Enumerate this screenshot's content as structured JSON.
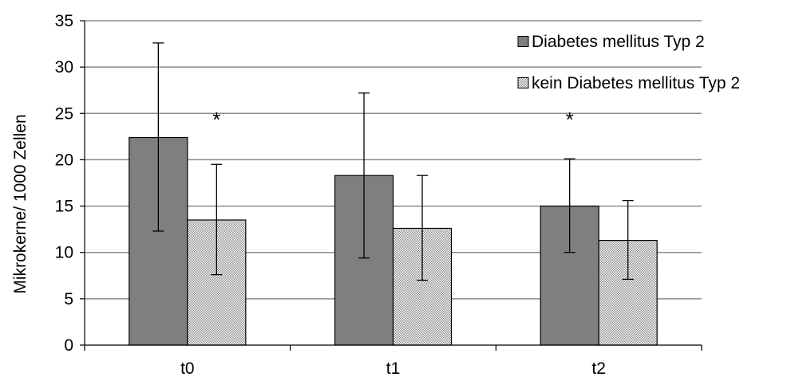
{
  "chart_data": {
    "type": "bar",
    "title": "",
    "xlabel": "",
    "ylabel": "Mikrokerne/ 1000 Zellen",
    "ylim": [
      0,
      35
    ],
    "yticks": [
      0,
      5,
      10,
      15,
      20,
      25,
      30,
      35
    ],
    "ytick_labels": [
      "0",
      "5",
      "10",
      "15",
      "20",
      "25",
      "30",
      "35"
    ],
    "grid": true,
    "legend_position": "top-right",
    "categories": [
      "t0",
      "t1",
      "t2"
    ],
    "series": [
      {
        "name": "Diabetes mellitus Typ 2",
        "values": [
          22.4,
          18.3,
          15.0
        ],
        "error_low": [
          12.3,
          9.4,
          10.0
        ],
        "error_high": [
          32.6,
          27.2,
          20.1
        ],
        "fill": "#7f7f7f",
        "pattern": "solid"
      },
      {
        "name": "kein Diabetes mellitus Typ 2",
        "values": [
          13.5,
          12.6,
          11.3
        ],
        "error_low": [
          7.6,
          7.0,
          7.1
        ],
        "error_high": [
          19.5,
          18.3,
          15.6
        ],
        "fill": "#d9d9d9",
        "pattern": "dotted"
      }
    ],
    "annotations": [
      {
        "text": "*",
        "category": "t0",
        "series_index": 1,
        "y": 25.1
      },
      {
        "text": "*",
        "category": "t2",
        "series_index": 0,
        "y": 25.1
      }
    ]
  }
}
